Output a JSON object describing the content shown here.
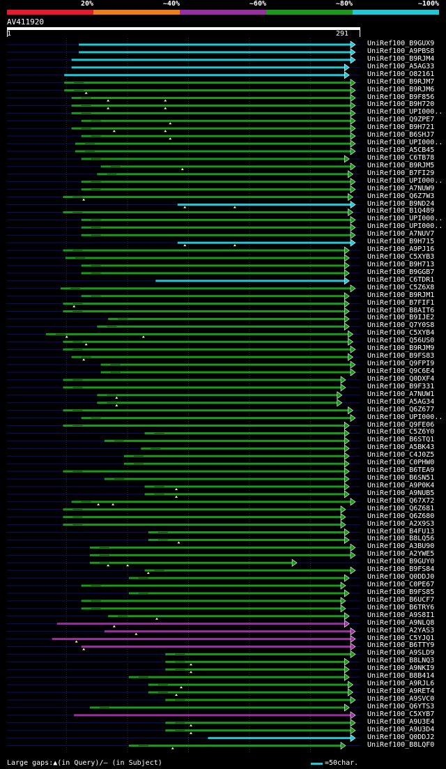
{
  "legend": {
    "items": [
      {
        "label": "20%",
        "color": "#e8192c"
      },
      {
        "label": "~40%",
        "color": "#ef7d1a"
      },
      {
        "label": "~60%",
        "color": "#9a2ea3"
      },
      {
        "label": "~80%",
        "color": "#1a9a1a"
      },
      {
        "label": "~100%",
        "color": "#1fc8d6"
      }
    ]
  },
  "query": {
    "name": "AV411920",
    "start": "1",
    "end": "291"
  },
  "footer": {
    "gaps_text": "Large gaps:▲(in Query)/— (in Subject)",
    "scale_text": "=50char."
  },
  "chart_data": {
    "type": "alignment",
    "title": "AV411920",
    "query_length": 291,
    "x_axis": {
      "min": 1,
      "max": 291
    },
    "grid_positions": [
      50,
      100,
      150,
      200,
      250
    ],
    "series_colors": {
      "cyan": "#1fc8d6",
      "green": "#1a9a1a",
      "purple": "#9a2ea3",
      "navy": "#0c0c70",
      "marker": "#ffff99"
    },
    "hits": [
      {
        "name": "UniRef100_B9GUX9",
        "start": 60,
        "end": 291,
        "color": "cyan",
        "marks": []
      },
      {
        "name": "UniRef100_A9PBS8",
        "start": 60,
        "end": 291,
        "color": "cyan",
        "marks": []
      },
      {
        "name": "UniRef100_B9RJM4",
        "start": 54,
        "end": 291,
        "color": "cyan",
        "marks": []
      },
      {
        "name": "UniRef100_A5AG33",
        "start": 54,
        "end": 282,
        "color": "cyan",
        "marks": []
      },
      {
        "name": "UniRef100_O82161",
        "start": 48,
        "end": 282,
        "color": "cyan",
        "marks": []
      },
      {
        "name": "UniRef100_B9RJM7",
        "start": 48,
        "end": 289,
        "color": "green",
        "marks": []
      },
      {
        "name": "UniRef100_B9RJM6",
        "start": 48,
        "end": 289,
        "color": "green",
        "marks": [
          66
        ]
      },
      {
        "name": "UniRef100_B9F856",
        "start": 54,
        "end": 291,
        "color": "green",
        "marks": [
          84,
          131
        ]
      },
      {
        "name": "UniRef100_B9H720",
        "start": 54,
        "end": 291,
        "color": "green",
        "marks": [
          84,
          131
        ]
      },
      {
        "name": "UniRef100_UPI000..",
        "start": 54,
        "end": 291,
        "color": "green",
        "marks": []
      },
      {
        "name": "UniRef100_Q9ZPE7",
        "start": 62,
        "end": 297,
        "color": "green",
        "marks": [
          135
        ]
      },
      {
        "name": "UniRef100_B9H721",
        "start": 54,
        "end": 291,
        "color": "green",
        "marks": [
          89,
          131
        ]
      },
      {
        "name": "UniRef100_B6SHJ7",
        "start": 62,
        "end": 297,
        "color": "green",
        "marks": [
          135
        ]
      },
      {
        "name": "UniRef100_UPI000..",
        "start": 57,
        "end": 291,
        "color": "green",
        "marks": []
      },
      {
        "name": "UniRef100_A5CB45",
        "start": 57,
        "end": 291,
        "color": "green",
        "marks": []
      },
      {
        "name": "UniRef100_C6TB78",
        "start": 62,
        "end": 282,
        "color": "green",
        "marks": []
      },
      {
        "name": "UniRef100_B9RJM5",
        "start": 78,
        "end": 294,
        "color": "green",
        "marks": [
          145
        ]
      },
      {
        "name": "UniRef100_B7FI29",
        "start": 75,
        "end": 285,
        "color": "green",
        "marks": []
      },
      {
        "name": "UniRef100_UPI000..",
        "start": 62,
        "end": 291,
        "color": "green",
        "marks": []
      },
      {
        "name": "UniRef100_A7NUW9",
        "start": 62,
        "end": 291,
        "color": "green",
        "marks": []
      },
      {
        "name": "UniRef100_Q6Z7W3",
        "start": 47,
        "end": 285,
        "color": "green",
        "marks": [
          64
        ]
      },
      {
        "name": "UniRef100_B9ND24",
        "start": 141,
        "end": 294,
        "color": "cyan",
        "marks": [
          147,
          188
        ]
      },
      {
        "name": "UniRef100_B1Q489",
        "start": 47,
        "end": 285,
        "color": "green",
        "marks": []
      },
      {
        "name": "UniRef100_UPI000..",
        "start": 62,
        "end": 291,
        "color": "green",
        "marks": []
      },
      {
        "name": "UniRef100_UPI000..",
        "start": 62,
        "end": 291,
        "color": "green",
        "marks": []
      },
      {
        "name": "UniRef100_A7NUV7",
        "start": 62,
        "end": 291,
        "color": "green",
        "marks": []
      },
      {
        "name": "UniRef100_B9H715",
        "start": 141,
        "end": 294,
        "color": "cyan",
        "marks": [
          147,
          188
        ]
      },
      {
        "name": "UniRef100_A9PJ16",
        "start": 47,
        "end": 282,
        "color": "green",
        "marks": []
      },
      {
        "name": "UniRef100_C5XYB3",
        "start": 49,
        "end": 282,
        "color": "green",
        "marks": []
      },
      {
        "name": "UniRef100_B9H713",
        "start": 62,
        "end": 282,
        "color": "green",
        "marks": []
      },
      {
        "name": "UniRef100_B9GGB7",
        "start": 62,
        "end": 282,
        "color": "green",
        "marks": []
      },
      {
        "name": "UniRef100_C6TDR1",
        "start": 123,
        "end": 282,
        "color": "cyan",
        "marks": []
      },
      {
        "name": "UniRef100_C5Z6X8",
        "start": 45,
        "end": 294,
        "color": "green",
        "marks": []
      },
      {
        "name": "UniRef100_B9RJM1",
        "start": 62,
        "end": 282,
        "color": "green",
        "marks": []
      },
      {
        "name": "UniRef100_B7FIF1",
        "start": 47,
        "end": 282,
        "color": "green",
        "marks": [
          56
        ]
      },
      {
        "name": "UniRef100_B8AIT6",
        "start": 47,
        "end": 282,
        "color": "green",
        "marks": []
      },
      {
        "name": "UniRef100_B9IJE2",
        "start": 84,
        "end": 282,
        "color": "green",
        "marks": []
      },
      {
        "name": "UniRef100_Q7Y0S8",
        "start": 75,
        "end": 282,
        "color": "green",
        "marks": []
      },
      {
        "name": "UniRef100_C5XYB4",
        "start": 33,
        "end": 285,
        "color": "green",
        "marks": [
          50,
          113
        ]
      },
      {
        "name": "UniRef100_Q56US0",
        "start": 47,
        "end": 285,
        "color": "green",
        "marks": [
          66
        ]
      },
      {
        "name": "UniRef100_B9RJM9",
        "start": 47,
        "end": 297,
        "color": "green",
        "marks": []
      },
      {
        "name": "UniRef100_B9FS83",
        "start": 54,
        "end": 285,
        "color": "green",
        "marks": [
          64
        ]
      },
      {
        "name": "UniRef100_Q9FPI9",
        "start": 78,
        "end": 297,
        "color": "green",
        "marks": []
      },
      {
        "name": "UniRef100_Q9C6E4",
        "start": 78,
        "end": 297,
        "color": "green",
        "marks": []
      },
      {
        "name": "UniRef100_Q0DXF4",
        "start": 47,
        "end": 279,
        "color": "green",
        "marks": []
      },
      {
        "name": "UniRef100_B9F331",
        "start": 47,
        "end": 279,
        "color": "green",
        "marks": []
      },
      {
        "name": "UniRef100_A7NUW1",
        "start": 75,
        "end": 276,
        "color": "green",
        "marks": [
          91
        ]
      },
      {
        "name": "UniRef100_A5AG34",
        "start": 75,
        "end": 276,
        "color": "green",
        "marks": [
          91
        ]
      },
      {
        "name": "UniRef100_Q6Z677",
        "start": 47,
        "end": 285,
        "color": "green",
        "marks": []
      },
      {
        "name": "UniRef100_UPI000..",
        "start": 62,
        "end": 291,
        "color": "green",
        "marks": []
      },
      {
        "name": "UniRef100_Q9FE06",
        "start": 47,
        "end": 282,
        "color": "green",
        "marks": []
      },
      {
        "name": "UniRef100_C5Z6Y0",
        "start": 114,
        "end": 282,
        "color": "green",
        "marks": []
      },
      {
        "name": "UniRef100_B6STQ1",
        "start": 81,
        "end": 282,
        "color": "green",
        "marks": []
      },
      {
        "name": "UniRef100_A5BK43",
        "start": 111,
        "end": 282,
        "color": "green",
        "marks": []
      },
      {
        "name": "UniRef100_C4J0Z5",
        "start": 97,
        "end": 282,
        "color": "green",
        "marks": []
      },
      {
        "name": "UniRef100_C0PHW0",
        "start": 97,
        "end": 282,
        "color": "green",
        "marks": []
      },
      {
        "name": "UniRef100_B6TEA9",
        "start": 47,
        "end": 282,
        "color": "green",
        "marks": []
      },
      {
        "name": "UniRef100_B6SN51",
        "start": 81,
        "end": 282,
        "color": "green",
        "marks": []
      },
      {
        "name": "UniRef100_A9P0K4",
        "start": 114,
        "end": 282,
        "color": "green",
        "marks": [
          140
        ]
      },
      {
        "name": "UniRef100_A9NUB5",
        "start": 114,
        "end": 282,
        "color": "green",
        "marks": [
          140
        ]
      },
      {
        "name": "UniRef100_Q67X72",
        "start": 54,
        "end": 297,
        "color": "green",
        "marks": [
          76,
          88
        ]
      },
      {
        "name": "UniRef100_Q6Z681",
        "start": 47,
        "end": 279,
        "color": "green",
        "marks": []
      },
      {
        "name": "UniRef100_Q6Z680",
        "start": 47,
        "end": 279,
        "color": "green",
        "marks": []
      },
      {
        "name": "UniRef100_A2X9S3",
        "start": 47,
        "end": 279,
        "color": "green",
        "marks": []
      },
      {
        "name": "UniRef100_B4FU13",
        "start": 117,
        "end": 282,
        "color": "green",
        "marks": []
      },
      {
        "name": "UniRef100_B8LQ56",
        "start": 117,
        "end": 282,
        "color": "green",
        "marks": [
          142
        ]
      },
      {
        "name": "UniRef100_A3BU90",
        "start": 69,
        "end": 288,
        "color": "green",
        "marks": []
      },
      {
        "name": "UniRef100_A2YWE5",
        "start": 69,
        "end": 288,
        "color": "green",
        "marks": []
      },
      {
        "name": "UniRef100_B9GUY0",
        "start": 69,
        "end": 239,
        "color": "green",
        "marks": [
          84,
          100
        ]
      },
      {
        "name": "UniRef100_B9FS84",
        "start": 114,
        "end": 297,
        "color": "green",
        "marks": [
          117
        ]
      },
      {
        "name": "UniRef100_Q0DDJ0",
        "start": 101,
        "end": 282,
        "color": "green",
        "marks": []
      },
      {
        "name": "UniRef100_C0PE67",
        "start": 62,
        "end": 279,
        "color": "green",
        "marks": []
      },
      {
        "name": "UniRef100_B9FS85",
        "start": 101,
        "end": 282,
        "color": "green",
        "marks": []
      },
      {
        "name": "UniRef100_B6UCF7",
        "start": 62,
        "end": 279,
        "color": "green",
        "marks": []
      },
      {
        "name": "UniRef100_B6TRY6",
        "start": 62,
        "end": 279,
        "color": "green",
        "marks": []
      },
      {
        "name": "UniRef100_A9S8I1",
        "start": 84,
        "end": 282,
        "color": "green",
        "marks": [
          124
        ]
      },
      {
        "name": "UniRef100_A9NLQ8",
        "start": 42,
        "end": 282,
        "color": "purple",
        "marks": [
          89
        ]
      },
      {
        "name": "UniRef100_A2YAS3",
        "start": 81,
        "end": 297,
        "color": "purple",
        "marks": [
          107
        ]
      },
      {
        "name": "UniRef100_C5YJQ1",
        "start": 38,
        "end": 297,
        "color": "purple",
        "marks": [
          58
        ]
      },
      {
        "name": "UniRef100_B6TTY9",
        "start": 62,
        "end": 291,
        "color": "purple",
        "marks": [
          64
        ]
      },
      {
        "name": "UniRef100_A9SLD9",
        "start": 131,
        "end": 297,
        "color": "green",
        "marks": []
      },
      {
        "name": "UniRef100_B8LNQ3",
        "start": 131,
        "end": 282,
        "color": "green",
        "marks": [
          152
        ]
      },
      {
        "name": "UniRef100_A9NKI9",
        "start": 131,
        "end": 282,
        "color": "green",
        "marks": [
          152
        ]
      },
      {
        "name": "UniRef100_B8B414",
        "start": 101,
        "end": 282,
        "color": "green",
        "marks": []
      },
      {
        "name": "UniRef100_A9RJL6",
        "start": 117,
        "end": 285,
        "color": "green",
        "marks": [
          144
        ]
      },
      {
        "name": "UniRef100_A9RET4",
        "start": 117,
        "end": 285,
        "color": "green",
        "marks": [
          140
        ]
      },
      {
        "name": "UniRef100_A9SVC0",
        "start": 131,
        "end": 291,
        "color": "green",
        "marks": []
      },
      {
        "name": "UniRef100_Q6YTS3",
        "start": 69,
        "end": 282,
        "color": "green",
        "marks": []
      },
      {
        "name": "UniRef100_C5XYB7",
        "start": 56,
        "end": 297,
        "color": "purple",
        "marks": []
      },
      {
        "name": "UniRef100_A9U3E4",
        "start": 131,
        "end": 297,
        "color": "green",
        "marks": [
          152
        ]
      },
      {
        "name": "UniRef100_A9U3D4",
        "start": 131,
        "end": 297,
        "color": "green",
        "marks": [
          152
        ]
      },
      {
        "name": "UniRef100_Q0DDJ2",
        "start": 166,
        "end": 288,
        "color": "cyan",
        "marks": []
      },
      {
        "name": "UniRef100_B8LQF0",
        "start": 101,
        "end": 279,
        "color": "green",
        "marks": [
          137
        ]
      }
    ]
  }
}
